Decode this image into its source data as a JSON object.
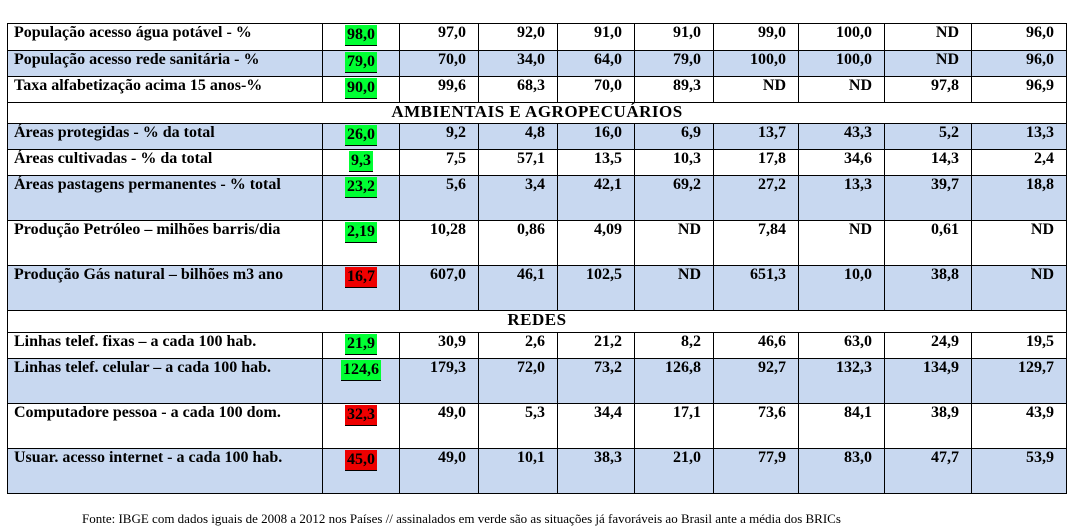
{
  "rows": [
    {
      "type": "data",
      "bg": "white",
      "label": "População acesso água potável - %",
      "brazil": "98,0",
      "brazil_color": "green",
      "values": [
        "97,0",
        "92,0",
        "91,0",
        "91,0",
        "99,0",
        "100,0",
        "ND",
        "96,0"
      ],
      "h": 27
    },
    {
      "type": "data",
      "bg": "blue",
      "label": "População acesso rede sanitária - %",
      "brazil": "79,0",
      "brazil_color": "green",
      "values": [
        "70,0",
        "34,0",
        "64,0",
        "79,0",
        "100,0",
        "100,0",
        "ND",
        "96,0"
      ],
      "h": 26
    },
    {
      "type": "data",
      "bg": "white",
      "label": "Taxa alfabetização acima 15 anos-%",
      "brazil": "90,0",
      "brazil_color": "green",
      "values": [
        "99,6",
        "68,3",
        "70,0",
        "89,3",
        "ND",
        "ND",
        "97,8",
        "96,9"
      ],
      "h": 26
    },
    {
      "type": "section",
      "label": "AMBIENTAIS  E AGROPECUÁRIOS",
      "h": 21
    },
    {
      "type": "data",
      "bg": "blue",
      "label": "Áreas protegidas - % da total",
      "brazil": "26,0",
      "brazil_color": "green",
      "values": [
        "9,2",
        "4,8",
        "16,0",
        "6,9",
        "13,7",
        "43,3",
        "5,2",
        "13,3"
      ],
      "h": 26
    },
    {
      "type": "data",
      "bg": "white",
      "label": "Áreas cultivadas - % da total",
      "brazil": "9,3",
      "brazil_color": "green",
      "values": [
        "7,5",
        "57,1",
        "13,5",
        "10,3",
        "17,8",
        "34,6",
        "14,3",
        "2,4"
      ],
      "h": 26
    },
    {
      "type": "data",
      "bg": "blue",
      "label": "Áreas pastagens  permanentes  - % total",
      "brazil": "23,2",
      "brazil_color": "green",
      "values": [
        "5,6",
        "3,4",
        "42,1",
        "69,2",
        "27,2",
        "13,3",
        "39,7",
        "18,8"
      ],
      "h": 45
    },
    {
      "type": "data",
      "bg": "white",
      "label": "Produção Petróleo – milhões barris/dia",
      "brazil": "2,19",
      "brazil_color": "green",
      "values": [
        "10,28",
        "0,86",
        "4,09",
        "ND",
        "7,84",
        "ND",
        "0,61",
        "ND"
      ],
      "h": 45
    },
    {
      "type": "data",
      "bg": "blue",
      "label": "Produção Gás natural – bilhões m3 ano",
      "brazil": "16,7",
      "brazil_color": "red",
      "values": [
        "607,0",
        "46,1",
        "102,5",
        "ND",
        "651,3",
        "10,0",
        "38,8",
        "ND"
      ],
      "h": 45
    },
    {
      "type": "section",
      "label": "REDES",
      "h": 22
    },
    {
      "type": "data",
      "bg": "white",
      "label": "Linhas telef. fixas – a cada 100 hab.",
      "brazil": "21,9",
      "brazil_color": "green",
      "values": [
        "30,9",
        "2,6",
        "21,2",
        "8,2",
        "46,6",
        "63,0",
        "24,9",
        "19,5"
      ],
      "h": 26
    },
    {
      "type": "data",
      "bg": "blue",
      "label": "Linhas telef. celular – a cada 100 hab.",
      "brazil": "124,6",
      "brazil_color": "green",
      "values": [
        "179,3",
        "72,0",
        "73,2",
        "126,8",
        "92,7",
        "132,3",
        "134,9",
        "129,7"
      ],
      "h": 45
    },
    {
      "type": "data",
      "bg": "white",
      "label": "Computadore  pessoa - a cada 100 dom.",
      "brazil": "32,3",
      "brazil_color": "red",
      "values": [
        "49,0",
        "5,3",
        "34,4",
        "17,1",
        "73,6",
        "84,1",
        "38,9",
        "43,9"
      ],
      "h": 45
    },
    {
      "type": "data",
      "bg": "blue",
      "label": "Usuar. acesso internet - a cada 100 hab.",
      "brazil": "45,0",
      "brazil_color": "red",
      "values": [
        "49,0",
        "10,1",
        "38,3",
        "21,0",
        "77,9",
        "83,0",
        "47,7",
        "53,9"
      ],
      "h": 45
    }
  ],
  "footer": "Fonte: IBGE com dados iguais de 2008 a 2012 nos Países // assinalados em verde são as situações já favoráveis ao Brasil ante a média dos BRICs",
  "colors": {
    "green": "#00ff33",
    "red": "#ee0000",
    "blue_row": "#c8d8f0"
  }
}
